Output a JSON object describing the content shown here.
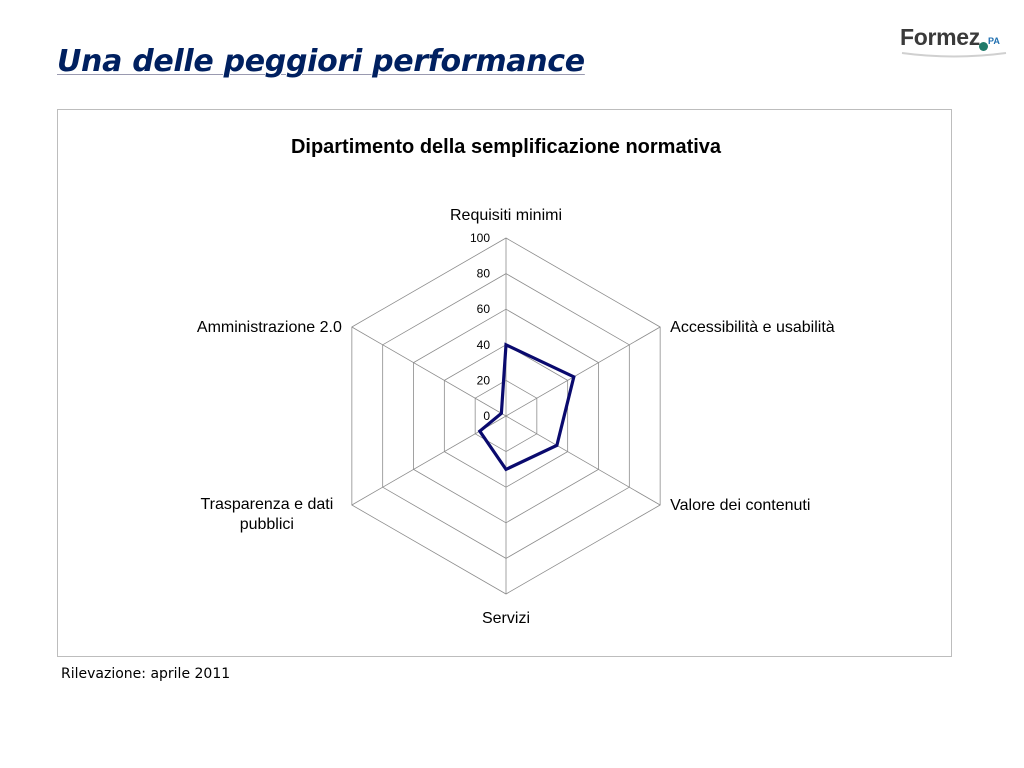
{
  "slide": {
    "title": "Una delle peggiori performance",
    "footnote": "Rilevazione: aprile 2011"
  },
  "logo": {
    "word": "Formez",
    "suffix": "PA"
  },
  "colors": {
    "title": "#002060",
    "series_line": "#0a0a6e",
    "grid": "#8c8c8c",
    "frame": "#bdbdbd"
  },
  "chart_data": {
    "type": "radar",
    "title": "Dipartimento della semplificazione normativa",
    "categories": [
      "Requisiti minimi",
      "Accessibilità e usabilità",
      "Valore dei contenuti",
      "Servizi",
      "Trasparenza e dati pubblici",
      "Amministrazione 2.0"
    ],
    "series": [
      {
        "values": [
          40,
          44,
          33,
          30,
          17,
          3
        ]
      }
    ],
    "rlim": [
      0,
      100
    ],
    "ticks": [
      0,
      20,
      40,
      60,
      80,
      100
    ],
    "grid": true,
    "legend": "none"
  }
}
